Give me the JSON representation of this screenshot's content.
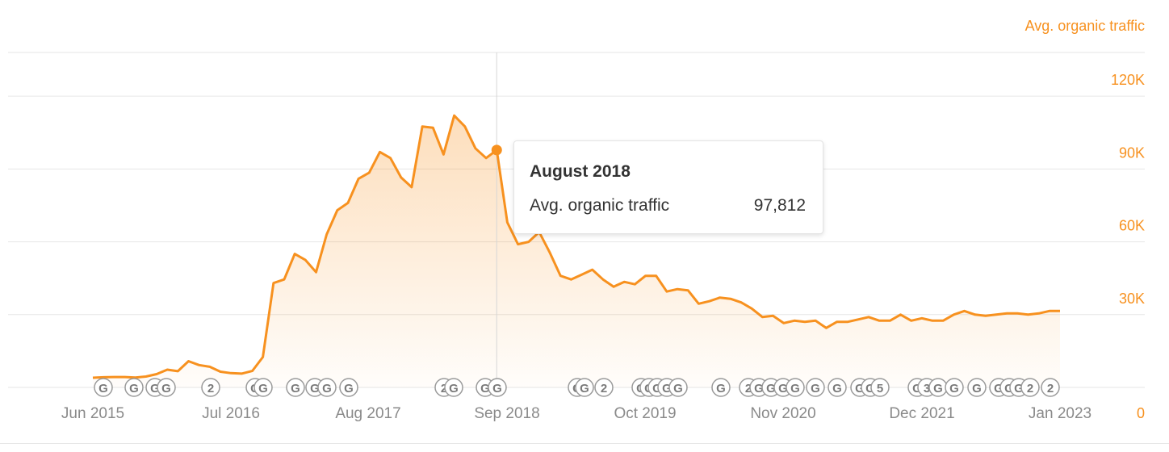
{
  "series_title": "Avg. organic traffic",
  "tooltip": {
    "title": "August 2018",
    "label": "Avg. organic traffic",
    "value": "97,812"
  },
  "colors": {
    "line": "#f7911f",
    "axis_text": "#f7911f",
    "x_text": "#8a8a8a",
    "grid": "#e6e6e6",
    "marker": "#9a9a9a"
  },
  "chart_data": {
    "type": "area",
    "series": [
      {
        "name": "Avg. organic traffic",
        "x": [
          "2015-06",
          "2015-07",
          "2015-08",
          "2015-09",
          "2015-10",
          "2015-11",
          "2015-12",
          "2016-01",
          "2016-02",
          "2016-03",
          "2016-04",
          "2016-05",
          "2016-06",
          "2016-07",
          "2016-08",
          "2016-09",
          "2016-10",
          "2016-11",
          "2016-12",
          "2017-01",
          "2017-02",
          "2017-03",
          "2017-04",
          "2017-05",
          "2017-06",
          "2017-07",
          "2017-08",
          "2017-09",
          "2017-10",
          "2017-11",
          "2017-12",
          "2018-01",
          "2018-02",
          "2018-03",
          "2018-04",
          "2018-05",
          "2018-06",
          "2018-07",
          "2018-08",
          "2018-09",
          "2018-10",
          "2018-11",
          "2018-12",
          "2019-01",
          "2019-02",
          "2019-03",
          "2019-04",
          "2019-05",
          "2019-06",
          "2019-07",
          "2019-08",
          "2019-09",
          "2019-10",
          "2019-11",
          "2019-12",
          "2020-01",
          "2020-02",
          "2020-03",
          "2020-04",
          "2020-05",
          "2020-06",
          "2020-07",
          "2020-08",
          "2020-09",
          "2020-10",
          "2020-11",
          "2020-12",
          "2021-01",
          "2021-02",
          "2021-03",
          "2021-04",
          "2021-05",
          "2021-06",
          "2021-07",
          "2021-08",
          "2021-09",
          "2021-10",
          "2021-11",
          "2021-12",
          "2022-01",
          "2022-02",
          "2022-03",
          "2022-04",
          "2022-05",
          "2022-06",
          "2022-07",
          "2022-08",
          "2022-09",
          "2022-10",
          "2022-11",
          "2022-12",
          "2023-01"
        ],
        "values": [
          4000,
          4200,
          4300,
          4300,
          4100,
          4500,
          5500,
          7300,
          6700,
          10800,
          9200,
          8500,
          6500,
          5900,
          5700,
          6800,
          12500,
          43000,
          44500,
          55000,
          52500,
          47500,
          63000,
          73000,
          76000,
          86000,
          88500,
          97000,
          94500,
          86500,
          82500,
          107500,
          107000,
          96000,
          112000,
          107500,
          98500,
          94500,
          97812,
          68000,
          59000,
          60000,
          64000,
          55500,
          46000,
          44500,
          46500,
          48500,
          44500,
          41500,
          43500,
          42500,
          46000,
          46000,
          39500,
          40500,
          40000,
          34500,
          35500,
          37000,
          36500,
          35000,
          32500,
          29000,
          29500,
          26500,
          27500,
          27000,
          27500,
          24500,
          27000,
          27000,
          28000,
          29000,
          27500,
          27500,
          30000,
          27500,
          28500,
          27500,
          27500,
          30000,
          31500,
          30000,
          29500,
          30000,
          30500,
          30500,
          30000,
          30500,
          31500,
          31500
        ]
      }
    ],
    "x_ticks": [
      "Jun 2015",
      "Jul 2016",
      "Aug 2017",
      "Sep 2018",
      "Oct 2019",
      "Nov 2020",
      "Dec 2021",
      "Jan 2023"
    ],
    "y_ticks": [
      "0",
      "30K",
      "60K",
      "90K",
      "120K"
    ],
    "ylim": [
      0,
      120000
    ],
    "highlight": {
      "x": "2018-08",
      "value": 97812
    },
    "markers": [
      "G",
      "G",
      "G",
      "G",
      "2",
      "G",
      "G",
      "G",
      "G",
      "G",
      "G",
      "2",
      "G",
      "G",
      "G",
      "G",
      "G",
      "2",
      "G",
      "G",
      "G",
      "G",
      "G",
      "G",
      "2",
      "G",
      "G",
      "G",
      "G",
      "G",
      "G",
      "G",
      "G",
      "5",
      "G",
      "3",
      "G",
      "G",
      "G",
      "G",
      "G",
      "G",
      "2",
      "2"
    ],
    "grid": true,
    "legend": "top-right"
  }
}
